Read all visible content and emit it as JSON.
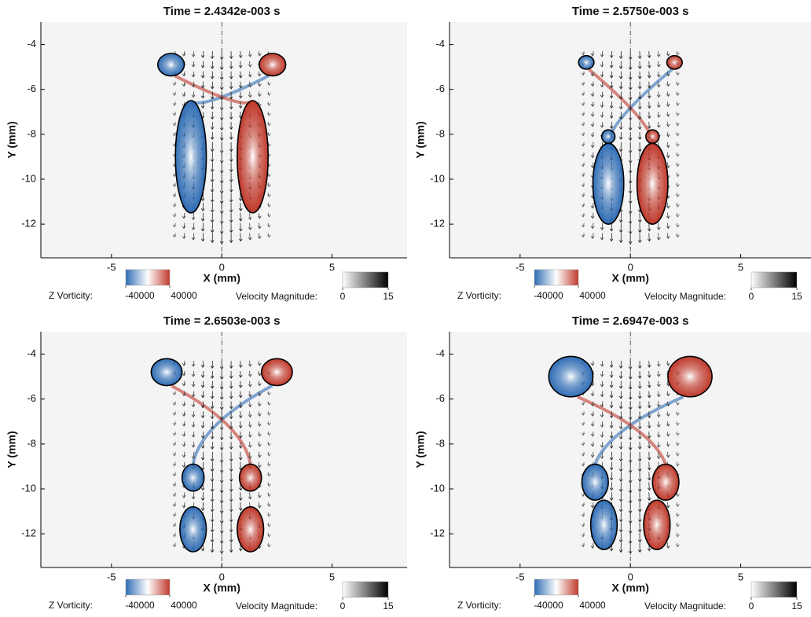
{
  "chart_data": [
    {
      "type": "vector-field",
      "title": "Time = 2.4342e-003 s",
      "x_label": "X (mm)",
      "y_label": "Y (mm)",
      "xlim": [
        -8.2,
        8.4
      ],
      "ylim": [
        -13.5,
        -3
      ],
      "xticks": [
        -5,
        0,
        5
      ],
      "yticks": [
        -4,
        -6,
        -8,
        -10,
        -12
      ],
      "colorbars": [
        {
          "label": "Z Vorticity:",
          "lim": [
            -40000,
            40000
          ],
          "ticks": [
            -40000,
            40000
          ],
          "colors": [
            "#2f6db5",
            "#ffffff",
            "#c0392b"
          ]
        },
        {
          "label": "Velocity Magnitude:",
          "lim": [
            0,
            15
          ],
          "ticks": [
            0,
            15
          ],
          "colors": [
            "#ffffff",
            "#000000"
          ]
        }
      ]
    },
    {
      "type": "vector-field",
      "title": "Time = 2.5750e-003 s",
      "x_label": "X (mm)",
      "y_label": "Y (mm)",
      "xlim": [
        -8.2,
        8.4
      ],
      "ylim": [
        -13.5,
        -3
      ],
      "xticks": [
        -5,
        0,
        5
      ],
      "yticks": [
        -4,
        -6,
        -8,
        -10,
        -12
      ],
      "colorbars": [
        {
          "label": "Z Vorticity:",
          "lim": [
            -40000,
            40000
          ],
          "ticks": [
            -40000,
            40000
          ],
          "colors": [
            "#2f6db5",
            "#ffffff",
            "#c0392b"
          ]
        },
        {
          "label": "Velocity Magnitude:",
          "lim": [
            0,
            15
          ],
          "ticks": [
            0,
            15
          ],
          "colors": [
            "#ffffff",
            "#000000"
          ]
        }
      ]
    },
    {
      "type": "vector-field",
      "title": "Time = 2.6503e-003 s",
      "x_label": "X (mm)",
      "y_label": "Y (mm)",
      "xlim": [
        -8.2,
        8.4
      ],
      "ylim": [
        -13.5,
        -3
      ],
      "xticks": [
        -5,
        0,
        5
      ],
      "yticks": [
        -4,
        -6,
        -8,
        -10,
        -12
      ],
      "colorbars": [
        {
          "label": "Z Vorticity:",
          "lim": [
            -40000,
            40000
          ],
          "ticks": [
            -40000,
            40000
          ],
          "colors": [
            "#2f6db5",
            "#ffffff",
            "#c0392b"
          ]
        },
        {
          "label": "Velocity Magnitude:",
          "lim": [
            0,
            15
          ],
          "ticks": [
            0,
            15
          ],
          "colors": [
            "#ffffff",
            "#000000"
          ]
        }
      ]
    },
    {
      "type": "vector-field",
      "title": "Time = 2.6947e-003 s",
      "x_label": "X (mm)",
      "y_label": "Y (mm)",
      "xlim": [
        -8.2,
        8.4
      ],
      "ylim": [
        -13.5,
        -3
      ],
      "xticks": [
        -5,
        0,
        5
      ],
      "yticks": [
        -4,
        -6,
        -8,
        -10,
        -12
      ],
      "colorbars": [
        {
          "label": "Z Vorticity:",
          "lim": [
            -40000,
            40000
          ],
          "ticks": [
            -40000,
            40000
          ],
          "colors": [
            "#2f6db5",
            "#ffffff",
            "#c0392b"
          ]
        },
        {
          "label": "Velocity Magnitude:",
          "lim": [
            0,
            15
          ],
          "ticks": [
            0,
            15
          ],
          "colors": [
            "#ffffff",
            "#000000"
          ]
        }
      ]
    }
  ]
}
